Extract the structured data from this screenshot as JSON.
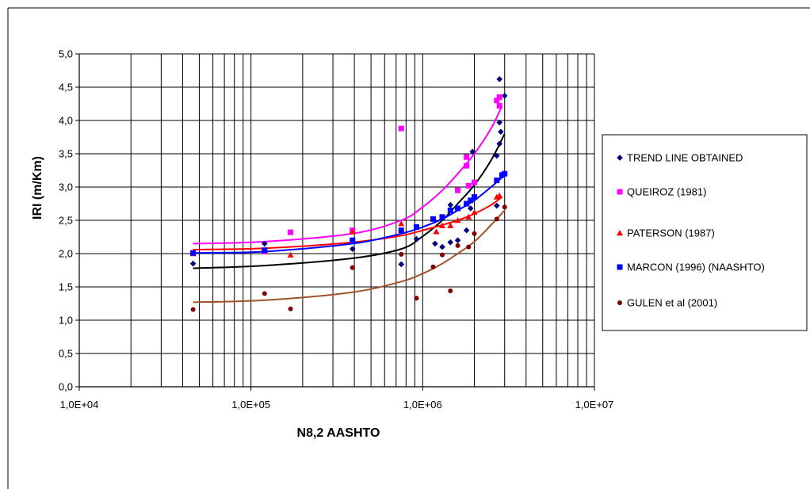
{
  "chart_data": {
    "type": "scatter",
    "xlabel": "N8,2 AASHTO",
    "ylabel": "IRI (m/Km)",
    "x_scale": "log",
    "xlim": [
      10000,
      10000000
    ],
    "ylim": [
      0,
      5
    ],
    "x_tick_values": [
      10000,
      100000,
      1000000,
      10000000
    ],
    "x_tick_labels": [
      "1,0E+04",
      "1,0E+05",
      "1,0E+06",
      "1,0E+07"
    ],
    "y_tick_values": [
      0,
      0.5,
      1,
      1.5,
      2,
      2.5,
      3,
      3.5,
      4,
      4.5,
      5
    ],
    "y_tick_labels": [
      "0,0",
      "0,5",
      "1,0",
      "1,5",
      "2,0",
      "2,5",
      "3,0",
      "3,5",
      "4,0",
      "4,5",
      "5,0"
    ],
    "grid": true,
    "legend_position": "right",
    "series": [
      {
        "name": "TREND LINE OBTAINED",
        "color": "#000080",
        "marker": "diamond",
        "trend_color": "#000000",
        "points": [
          [
            46000,
            1.85
          ],
          [
            120000,
            2.15
          ],
          [
            390000,
            2.07
          ],
          [
            750000,
            1.84
          ],
          [
            920000,
            2.22
          ],
          [
            1180000,
            2.15
          ],
          [
            1300000,
            2.1
          ],
          [
            1450000,
            2.17
          ],
          [
            1450000,
            2.73
          ],
          [
            1600000,
            2.2
          ],
          [
            1800000,
            2.35
          ],
          [
            1900000,
            2.68
          ],
          [
            1950000,
            3.53
          ],
          [
            2700000,
            2.72
          ],
          [
            2700000,
            3.47
          ],
          [
            2800000,
            3.65
          ],
          [
            2800000,
            3.97
          ],
          [
            2850000,
            3.83
          ],
          [
            2800000,
            4.62
          ],
          [
            2900000,
            3.18
          ],
          [
            3000000,
            4.37
          ]
        ],
        "trend": [
          [
            46000,
            1.78
          ],
          [
            120000,
            1.82
          ],
          [
            390000,
            1.93
          ],
          [
            750000,
            2.07
          ],
          [
            1000000,
            2.26
          ],
          [
            1300000,
            2.5
          ],
          [
            1600000,
            2.75
          ],
          [
            2000000,
            3.03
          ],
          [
            2500000,
            3.4
          ],
          [
            3000000,
            3.8
          ]
        ]
      },
      {
        "name": "QUEIROZ (1981)",
        "color": "#FF00FF",
        "marker": "square",
        "trend_color": "#FF00FF",
        "points": [
          [
            120000,
            2.03
          ],
          [
            170000,
            2.32
          ],
          [
            390000,
            2.35
          ],
          [
            750000,
            3.88
          ],
          [
            1600000,
            2.95
          ],
          [
            1800000,
            3.32
          ],
          [
            1800000,
            3.45
          ],
          [
            1850000,
            3.02
          ],
          [
            2000000,
            3.07
          ],
          [
            2700000,
            4.3
          ],
          [
            2800000,
            4.22
          ],
          [
            2800000,
            4.35
          ]
        ],
        "trend": [
          [
            46000,
            2.15
          ],
          [
            120000,
            2.18
          ],
          [
            390000,
            2.3
          ],
          [
            750000,
            2.5
          ],
          [
            1000000,
            2.7
          ],
          [
            1300000,
            2.95
          ],
          [
            1600000,
            3.2
          ],
          [
            2000000,
            3.5
          ],
          [
            2500000,
            3.88
          ],
          [
            2900000,
            4.22
          ]
        ]
      },
      {
        "name": "PATERSON (1987)",
        "color": "#FF0000",
        "marker": "triangle",
        "trend_color": "#FF0000",
        "points": [
          [
            46000,
            2.0
          ],
          [
            120000,
            2.05
          ],
          [
            170000,
            1.98
          ],
          [
            390000,
            2.33
          ],
          [
            750000,
            2.45
          ],
          [
            1200000,
            2.33
          ],
          [
            1300000,
            2.42
          ],
          [
            1450000,
            2.42
          ],
          [
            1600000,
            2.5
          ],
          [
            1850000,
            2.55
          ],
          [
            2000000,
            2.62
          ],
          [
            2700000,
            2.85
          ],
          [
            2800000,
            2.87
          ]
        ],
        "trend": [
          [
            46000,
            2.06
          ],
          [
            120000,
            2.08
          ],
          [
            390000,
            2.17
          ],
          [
            750000,
            2.27
          ],
          [
            1000000,
            2.35
          ],
          [
            1300000,
            2.43
          ],
          [
            1600000,
            2.5
          ],
          [
            2000000,
            2.6
          ],
          [
            2500000,
            2.73
          ],
          [
            2900000,
            2.85
          ]
        ]
      },
      {
        "name": "MARCON (1996) (NAASHTO)",
        "color": "#0000FF",
        "marker": "square",
        "trend_color": "#0000FF",
        "points": [
          [
            46000,
            2.01
          ],
          [
            120000,
            2.05
          ],
          [
            390000,
            2.2
          ],
          [
            750000,
            2.35
          ],
          [
            920000,
            2.4
          ],
          [
            1150000,
            2.52
          ],
          [
            1300000,
            2.55
          ],
          [
            1450000,
            2.65
          ],
          [
            1600000,
            2.68
          ],
          [
            1800000,
            2.75
          ],
          [
            1900000,
            2.8
          ],
          [
            2000000,
            2.85
          ],
          [
            2700000,
            3.1
          ],
          [
            2900000,
            3.18
          ],
          [
            3000000,
            3.2
          ]
        ],
        "trend": [
          [
            46000,
            2.01
          ],
          [
            120000,
            2.03
          ],
          [
            390000,
            2.15
          ],
          [
            750000,
            2.3
          ],
          [
            1000000,
            2.4
          ],
          [
            1300000,
            2.52
          ],
          [
            1600000,
            2.65
          ],
          [
            2000000,
            2.8
          ],
          [
            2500000,
            3.0
          ],
          [
            3000000,
            3.18
          ]
        ]
      },
      {
        "name": "GULEN et al (2001)",
        "color": "#800000",
        "marker": "circle",
        "trend_color": "#A0522D",
        "points": [
          [
            46000,
            1.16
          ],
          [
            120000,
            1.4
          ],
          [
            170000,
            1.17
          ],
          [
            390000,
            1.79
          ],
          [
            750000,
            1.99
          ],
          [
            920000,
            1.33
          ],
          [
            1150000,
            1.8
          ],
          [
            1300000,
            1.98
          ],
          [
            1450000,
            1.44
          ],
          [
            1600000,
            2.12
          ],
          [
            1850000,
            2.1
          ],
          [
            2000000,
            2.3
          ],
          [
            2700000,
            2.52
          ],
          [
            3000000,
            2.7
          ]
        ],
        "trend": [
          [
            46000,
            1.27
          ],
          [
            120000,
            1.3
          ],
          [
            390000,
            1.42
          ],
          [
            750000,
            1.58
          ],
          [
            1000000,
            1.7
          ],
          [
            1300000,
            1.85
          ],
          [
            1600000,
            2.0
          ],
          [
            2000000,
            2.18
          ],
          [
            2500000,
            2.43
          ],
          [
            3000000,
            2.65
          ]
        ]
      }
    ]
  }
}
